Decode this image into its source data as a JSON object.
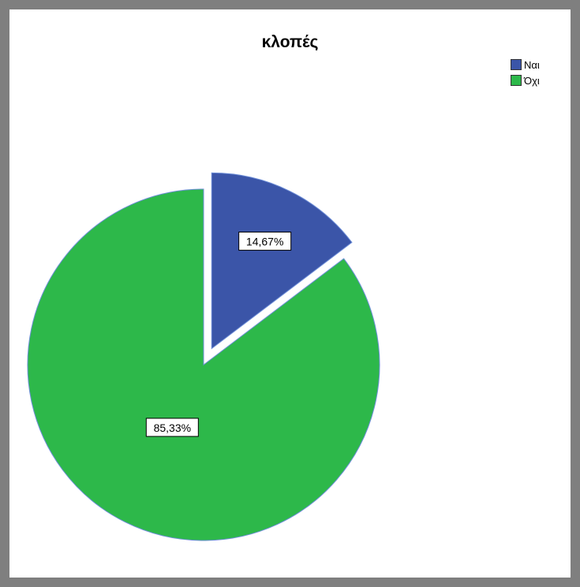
{
  "chart_data": {
    "type": "pie",
    "title": "κλοπές",
    "categories": [
      "Ναι",
      "Όχι"
    ],
    "values": [
      14.67,
      85.33
    ],
    "data_labels": [
      "14,67%",
      "85,33%"
    ],
    "colors": [
      "#3b55a8",
      "#2db84a"
    ],
    "exploded": [
      true,
      false
    ],
    "legend_position": "top-right"
  }
}
